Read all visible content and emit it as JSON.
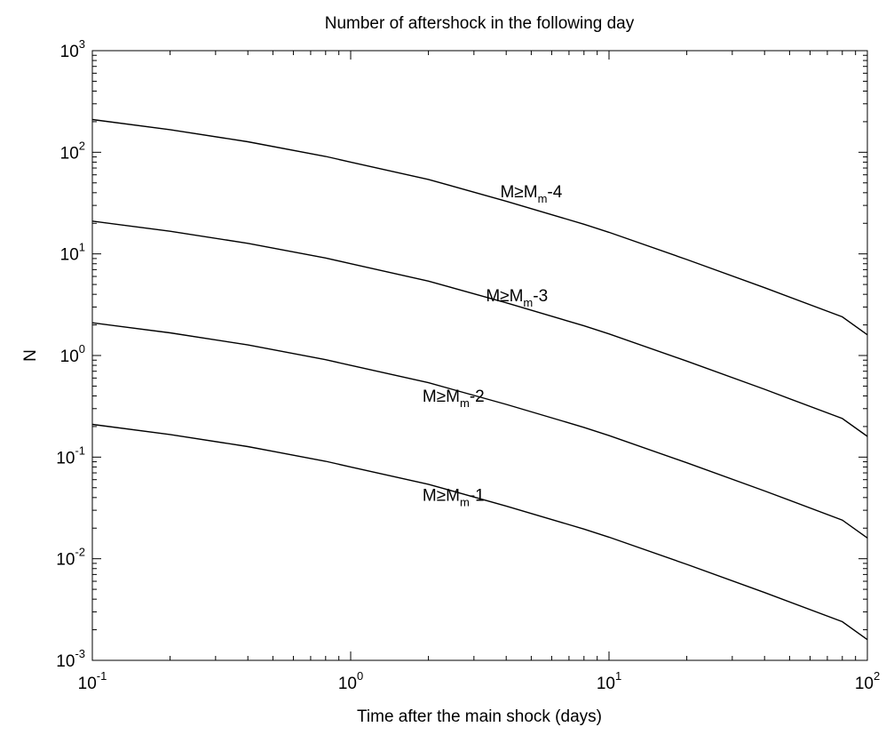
{
  "chart_data": {
    "type": "line",
    "title": "Number of aftershock in the following day",
    "xlabel": "Time after the main shock (days)",
    "ylabel": "N",
    "xscale": "log",
    "yscale": "log",
    "xlim": [
      0.1,
      100
    ],
    "ylim": [
      0.001,
      1000
    ],
    "grid": false,
    "x_ticks": [
      {
        "base": "10",
        "exp": "-1",
        "value": 0.1
      },
      {
        "base": "10",
        "exp": "0",
        "value": 1
      },
      {
        "base": "10",
        "exp": "1",
        "value": 10
      },
      {
        "base": "10",
        "exp": "2",
        "value": 100
      }
    ],
    "y_ticks": [
      {
        "base": "10",
        "exp": "-3",
        "value": 0.001
      },
      {
        "base": "10",
        "exp": "-2",
        "value": 0.01
      },
      {
        "base": "10",
        "exp": "-1",
        "value": 0.1
      },
      {
        "base": "10",
        "exp": "0",
        "value": 1
      },
      {
        "base": "10",
        "exp": "1",
        "value": 10
      },
      {
        "base": "10",
        "exp": "2",
        "value": 100
      },
      {
        "base": "10",
        "exp": "3",
        "value": 1000
      }
    ],
    "x": [
      0.1,
      0.2,
      0.4,
      0.8,
      1,
      2,
      4,
      8,
      10,
      20,
      40,
      80,
      100
    ],
    "series": [
      {
        "name": "M≥Mm-4",
        "label": {
          "pre": "M≥M",
          "sub": "m",
          "post": "-4"
        },
        "label_at": {
          "x": 5.0,
          "y": 36
        },
        "values": [
          210,
          167,
          127,
          91,
          80,
          54,
          33,
          19.6,
          16.3,
          8.8,
          4.65,
          2.4,
          1.6
        ]
      },
      {
        "name": "M≥Mm-3",
        "label": {
          "pre": "M≥M",
          "sub": "m",
          "post": "-3"
        },
        "label_at": {
          "x": 4.4,
          "y": 3.4
        },
        "values": [
          21,
          16.7,
          12.7,
          9.1,
          8.0,
          5.4,
          3.3,
          1.96,
          1.63,
          0.88,
          0.465,
          0.24,
          0.16
        ]
      },
      {
        "name": "M≥Mm-2",
        "label": {
          "pre": "M≥M",
          "sub": "m",
          "post": "-2"
        },
        "label_at": {
          "x": 2.5,
          "y": 0.35
        },
        "values": [
          2.1,
          1.67,
          1.27,
          0.91,
          0.8,
          0.54,
          0.33,
          0.196,
          0.163,
          0.088,
          0.0465,
          0.024,
          0.016
        ]
      },
      {
        "name": "M≥Mm-1",
        "label": {
          "pre": "M≥M",
          "sub": "m",
          "post": "-1"
        },
        "label_at": {
          "x": 2.5,
          "y": 0.037
        },
        "values": [
          0.21,
          0.167,
          0.127,
          0.091,
          0.08,
          0.054,
          0.033,
          0.0196,
          0.0163,
          0.0088,
          0.00465,
          0.0024,
          0.0016
        ]
      }
    ]
  }
}
